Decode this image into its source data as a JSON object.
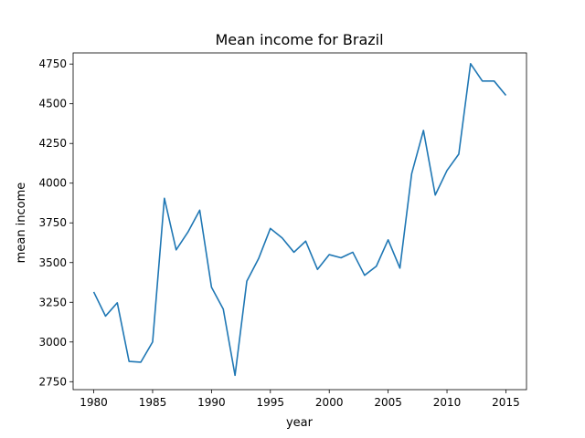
{
  "chart_data": {
    "type": "line",
    "title": "Mean income for Brazil",
    "xlabel": "year",
    "ylabel": "mean income",
    "xlim": [
      1978.25,
      2016.75
    ],
    "ylim": [
      2700,
      4820
    ],
    "xticks": [
      1980,
      1985,
      1990,
      1995,
      2000,
      2005,
      2010,
      2015
    ],
    "yticks": [
      2750,
      3000,
      3250,
      3500,
      3750,
      4000,
      4250,
      4500,
      4750
    ],
    "grid": false,
    "legend": "none",
    "series": [
      {
        "color": "#1f77b4",
        "x": [
          1980,
          1981,
          1982,
          1983,
          1984,
          1985,
          1986,
          1987,
          1988,
          1989,
          1990,
          1991,
          1992,
          1993,
          1994,
          1995,
          1996,
          1997,
          1998,
          1999,
          2000,
          2001,
          2002,
          2003,
          2004,
          2005,
          2006,
          2007,
          2008,
          2009,
          2010,
          2011,
          2012,
          2013,
          2014,
          2015
        ],
        "y": [
          3315,
          3163,
          3247,
          2878,
          2873,
          3000,
          3905,
          3580,
          3692,
          3830,
          3345,
          3207,
          2790,
          3383,
          3525,
          3715,
          3655,
          3565,
          3635,
          3457,
          3550,
          3530,
          3565,
          3420,
          3477,
          3643,
          3465,
          4060,
          4332,
          3925,
          4080,
          4183,
          4752,
          4643,
          4643,
          4553
        ]
      }
    ]
  }
}
